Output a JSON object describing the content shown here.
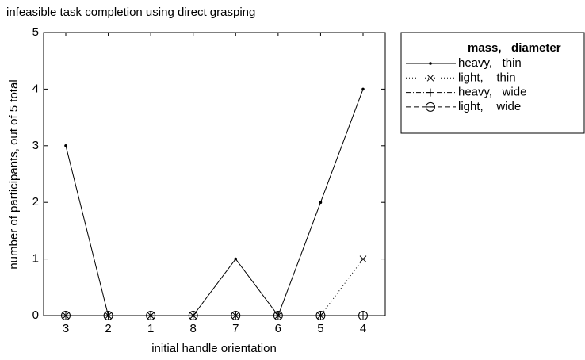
{
  "chart_data": {
    "type": "line",
    "title": "infeasible task completion using direct grasping",
    "x_label": "initial handle orientation",
    "y_label": "number of participants, out of 5 total",
    "categories": [
      "3",
      "2",
      "1",
      "8",
      "7",
      "6",
      "5",
      "4"
    ],
    "ylim": [
      0,
      5
    ],
    "yticks": [
      0,
      1,
      2,
      3,
      4,
      5
    ],
    "legend_header": "mass,   diameter",
    "legend_position": "outside-right",
    "series": [
      {
        "name": "heavy,   thin",
        "color": "#000000",
        "style": "solid",
        "marker": "dot",
        "values": [
          3,
          0,
          0,
          0,
          1,
          0,
          2,
          4
        ]
      },
      {
        "name": "light,    thin",
        "color": "#000000",
        "style": "dotted",
        "marker": "x",
        "values": [
          0,
          0,
          0,
          0,
          0,
          0,
          0,
          1
        ]
      },
      {
        "name": "heavy,   wide",
        "color": "#000000",
        "style": "dashdot",
        "marker": "plus",
        "values": [
          0,
          0,
          0,
          0,
          0,
          0,
          0,
          0
        ]
      },
      {
        "name": "light,    wide",
        "color": "#000000",
        "style": "dashed",
        "marker": "circle-minus",
        "values": [
          0,
          0,
          0,
          0,
          0,
          0,
          0,
          0
        ]
      }
    ]
  }
}
